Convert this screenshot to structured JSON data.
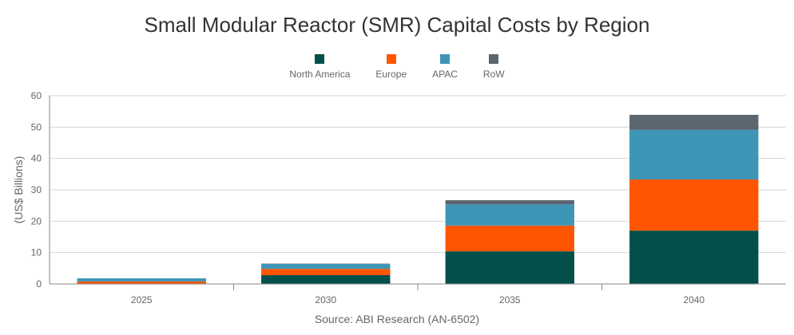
{
  "chart_data": {
    "type": "bar",
    "stacked": true,
    "title": "Small Modular Reactor (SMR) Capital Costs by Region",
    "ylabel": "(US$ Billions)",
    "xlabel": "",
    "source": "Source: ABI Research (AN-6502)",
    "ylim": [
      0,
      60
    ],
    "yticks": [
      0,
      10,
      20,
      30,
      40,
      50,
      60
    ],
    "grid": true,
    "legend_position": "top",
    "categories": [
      "2025",
      "2030",
      "2035",
      "2040"
    ],
    "series": [
      {
        "name": "North America",
        "color": "#03504b",
        "values": [
          0.1,
          2.8,
          10.4,
          17.0
        ]
      },
      {
        "name": "Europe",
        "color": "#ff5500",
        "values": [
          0.7,
          2.0,
          8.2,
          16.3
        ]
      },
      {
        "name": "APAC",
        "color": "#3f95b5",
        "values": [
          1.0,
          1.6,
          6.8,
          15.8
        ]
      },
      {
        "name": "RoW",
        "color": "#5b6670",
        "values": [
          0.0,
          0.1,
          1.3,
          4.8
        ]
      }
    ]
  }
}
